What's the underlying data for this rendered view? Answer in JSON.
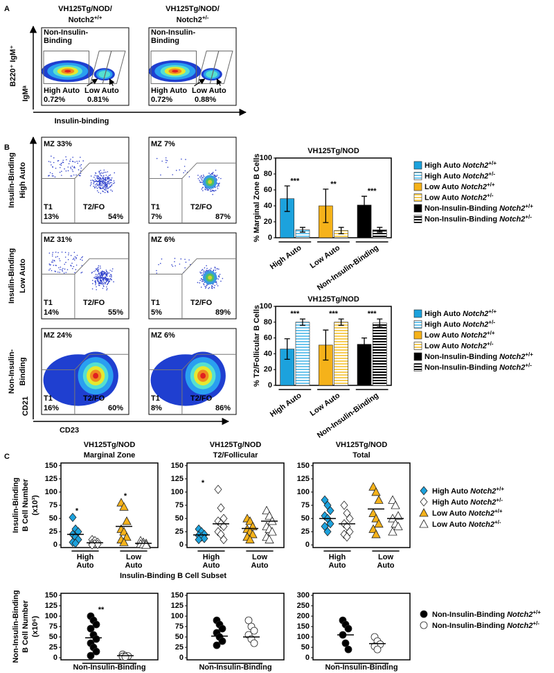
{
  "panel_labels": [
    "A",
    "B",
    "C"
  ],
  "panel_a": {
    "ylabel": "B220⁺ IgM⁺",
    "ylabel2": "IgMᵃ",
    "xlabel": "Insulin-binding",
    "plots": [
      {
        "title": "VH125Tg/NOD/",
        "gene": "Notch2",
        "genotype": "+/+",
        "gate": [
          "Non-Insulin-",
          "Binding"
        ],
        "high": "High Auto",
        "high_pct": "0.72%",
        "low": "Low Auto",
        "low_pct": "0.81%"
      },
      {
        "title": "VH125Tg/NOD/",
        "gene": "Notch2",
        "genotype": "+/-",
        "gate": [
          "Non-Insulin-",
          "Binding"
        ],
        "high": "High Auto",
        "high_pct": "0.72%",
        "low": "Low Auto",
        "low_pct": "0.88%"
      }
    ]
  },
  "panel_b_flow": {
    "row_labels": [
      [
        "Insulin-Binding",
        "High Auto"
      ],
      [
        "Insulin-Binding",
        "Low Auto"
      ],
      [
        "Non-Insulin-",
        "Binding"
      ]
    ],
    "ylabel": "CD21",
    "xlabel": "CD23",
    "plots": [
      [
        {
          "mz": "MZ 33%",
          "t1": "T1",
          "t1_pct": "13%",
          "t2": "T2/FO",
          "t2_pct": "54%"
        },
        {
          "mz": "MZ 7%",
          "t1": "T1",
          "t1_pct": "7%",
          "t2": "T2/FO",
          "t2_pct": "87%"
        }
      ],
      [
        {
          "mz": "MZ 31%",
          "t1": "T1",
          "t1_pct": "14%",
          "t2": "T2/FO",
          "t2_pct": "55%"
        },
        {
          "mz": "MZ 6%",
          "t1": "T1",
          "t1_pct": "5%",
          "t2": "T2/FO",
          "t2_pct": "89%"
        }
      ],
      [
        {
          "mz": "MZ 24%",
          "t1": "T1",
          "t1_pct": "16%",
          "t2": "T2/FO",
          "t2_pct": "60%"
        },
        {
          "mz": "MZ 6%",
          "t1": "T1",
          "t1_pct": "8%",
          "t2": "T2/FO",
          "t2_pct": "86%"
        }
      ]
    ]
  },
  "chart_data": [
    {
      "type": "bar",
      "title": "VH125Tg/NOD",
      "ylabel": "% Marginal Zone B Cells",
      "categories": [
        "High Auto",
        "Low Auto",
        "Non-Insulin-Binding"
      ],
      "significance": [
        "***",
        "**",
        "***"
      ],
      "ylim": [
        0,
        100
      ],
      "yticks": [
        0,
        20,
        40,
        60,
        80,
        100
      ],
      "series": [
        {
          "name": "High Auto",
          "gene": "Notch2",
          "genotype": "+/+",
          "color": "#1ca2dd",
          "hatch": false,
          "values": [
            49,
            null,
            null
          ],
          "errors": [
            16,
            null,
            null
          ]
        },
        {
          "name": "High Auto",
          "gene": "Notch2",
          "genotype": "+/-",
          "color": "#6cc4ec",
          "hatch": true,
          "values": [
            10,
            null,
            null
          ],
          "errors": [
            3,
            null,
            null
          ]
        },
        {
          "name": "Low Auto",
          "gene": "Notch2",
          "genotype": "+/+",
          "color": "#f5b21a",
          "hatch": false,
          "values": [
            null,
            40,
            null
          ],
          "errors": [
            null,
            21,
            null
          ]
        },
        {
          "name": "Low Auto",
          "gene": "Notch2",
          "genotype": "+/-",
          "color": "#f7cd55",
          "hatch": true,
          "values": [
            null,
            9,
            null
          ],
          "errors": [
            null,
            4,
            null
          ]
        },
        {
          "name": "Non-Insulin-Binding",
          "gene": "Notch2",
          "genotype": "+/+",
          "color": "#000000",
          "hatch": false,
          "values": [
            null,
            null,
            41
          ],
          "errors": [
            null,
            null,
            11
          ]
        },
        {
          "name": "Non-Insulin-Binding",
          "gene": "Notch2",
          "genotype": "+/-",
          "color": "#000000",
          "hatch": true,
          "values": [
            null,
            null,
            10
          ],
          "errors": [
            null,
            null,
            3
          ]
        }
      ]
    },
    {
      "type": "bar",
      "title": "VH125Tg/NOD",
      "ylabel": "% T2/Follicular B Cells",
      "categories": [
        "High Auto",
        "Low Auto",
        "Non-Insulin-Binding"
      ],
      "significance": [
        "***",
        "***",
        "***"
      ],
      "ylim": [
        0,
        100
      ],
      "yticks": [
        0,
        20,
        40,
        60,
        80,
        100
      ],
      "series": [
        {
          "name": "High Auto",
          "gene": "Notch2",
          "genotype": "+/+",
          "color": "#1ca2dd",
          "hatch": false,
          "values": [
            46,
            null,
            null
          ],
          "errors": [
            13,
            null,
            null
          ]
        },
        {
          "name": "High Auto",
          "gene": "Notch2",
          "genotype": "+/-",
          "color": "#6cc4ec",
          "hatch": true,
          "values": [
            80,
            null,
            null
          ],
          "errors": [
            4,
            null,
            null
          ]
        },
        {
          "name": "Low Auto",
          "gene": "Notch2",
          "genotype": "+/+",
          "color": "#f5b21a",
          "hatch": false,
          "values": [
            null,
            51,
            null
          ],
          "errors": [
            null,
            19,
            null
          ]
        },
        {
          "name": "Low Auto",
          "gene": "Notch2",
          "genotype": "+/-",
          "color": "#f7cd55",
          "hatch": true,
          "values": [
            null,
            80,
            null
          ],
          "errors": [
            null,
            4,
            null
          ]
        },
        {
          "name": "Non-Insulin-Binding",
          "gene": "Notch2",
          "genotype": "+/+",
          "color": "#000000",
          "hatch": false,
          "values": [
            null,
            null,
            52
          ],
          "errors": [
            null,
            null,
            8
          ]
        },
        {
          "name": "Non-Insulin-Binding",
          "gene": "Notch2",
          "genotype": "+/-",
          "color": "#000000",
          "hatch": true,
          "values": [
            null,
            null,
            79
          ],
          "errors": [
            null,
            null,
            5
          ]
        }
      ]
    },
    {
      "type": "scatter",
      "title": [
        "VH125Tg/NOD",
        "Marginal Zone"
      ],
      "ylabel": [
        "Insulin-Binding",
        "B Cell Number",
        "(x10³)"
      ],
      "categories": [
        [
          "High",
          "Auto"
        ],
        [
          "Low",
          "Auto"
        ]
      ],
      "significance": [
        "*",
        "*"
      ],
      "ylim": [
        -5,
        155
      ],
      "yticks": [
        0,
        25,
        50,
        75,
        100,
        125,
        150
      ],
      "series": [
        {
          "marker": "diamond",
          "color": "#1ca2dd",
          "values": [
            52,
            30,
            25,
            20,
            15,
            10,
            5,
            3
          ],
          "mean": 20
        },
        {
          "marker": "diamond",
          "color": "#ffffff",
          "values": [
            10,
            8,
            5,
            3,
            2,
            1,
            0
          ],
          "mean": 4
        },
        {
          "marker": "triangle",
          "color": "#f5b21a",
          "values": [
            80,
            72,
            45,
            30,
            25,
            15,
            10,
            5
          ],
          "mean": 35
        },
        {
          "marker": "triangle",
          "color": "#ffffff",
          "values": [
            8,
            5,
            3,
            2,
            1,
            0
          ],
          "mean": 3
        }
      ]
    },
    {
      "type": "scatter",
      "title": [
        "VH125Tg/NOD",
        "T2/Follicular"
      ],
      "xlabel": "Insulin-Binding B Cell Subset",
      "categories": [
        [
          "High",
          "Auto"
        ],
        [
          "Low",
          "Auto"
        ]
      ],
      "significance": [
        "*",
        null
      ],
      "ylim": [
        -5,
        155
      ],
      "yticks": [
        0,
        25,
        50,
        75,
        100,
        125,
        150
      ],
      "series": [
        {
          "marker": "diamond",
          "color": "#1ca2dd",
          "values": [
            30,
            25,
            20,
            18,
            15,
            12,
            10
          ],
          "mean": 19
        },
        {
          "marker": "diamond",
          "color": "#ffffff",
          "values": [
            105,
            70,
            50,
            45,
            40,
            35,
            25,
            20,
            10
          ],
          "mean": 40
        },
        {
          "marker": "triangle",
          "color": "#f5b21a",
          "values": [
            50,
            45,
            35,
            30,
            25,
            20,
            15,
            10
          ],
          "mean": 31
        },
        {
          "marker": "triangle",
          "color": "#ffffff",
          "values": [
            65,
            55,
            45,
            35,
            30,
            25,
            15,
            10
          ],
          "mean": 45
        }
      ]
    },
    {
      "type": "scatter",
      "title": [
        "VH125Tg/NOD",
        "Total"
      ],
      "categories": [
        [
          "High",
          "Auto"
        ],
        [
          "Low",
          "Auto"
        ]
      ],
      "ylim": [
        -5,
        155
      ],
      "yticks": [
        0,
        25,
        50,
        75,
        100,
        125,
        150
      ],
      "series": [
        {
          "marker": "diamond",
          "color": "#1ca2dd",
          "values": [
            85,
            75,
            65,
            55,
            50,
            40,
            35,
            25
          ],
          "mean": 50
        },
        {
          "marker": "diamond",
          "color": "#ffffff",
          "values": [
            75,
            60,
            50,
            40,
            35,
            25,
            20,
            15
          ],
          "mean": 40
        },
        {
          "marker": "triangle",
          "color": "#f5b21a",
          "values": [
            110,
            100,
            85,
            60,
            50,
            40,
            30,
            20
          ],
          "mean": 68
        },
        {
          "marker": "triangle",
          "color": "#ffffff",
          "values": [
            85,
            75,
            55,
            50,
            40,
            35,
            25
          ],
          "mean": 50
        }
      ]
    },
    {
      "type": "scatter",
      "ylabel": [
        "Non-Insulin-Binding",
        "B Cell Number",
        "(x10⁶)"
      ],
      "categories": [
        [
          "Non-Insulin-Binding"
        ]
      ],
      "significance": [
        "**"
      ],
      "ylim": [
        -5,
        155
      ],
      "yticks": [
        0,
        25,
        50,
        75,
        100,
        125,
        150
      ],
      "series": [
        {
          "marker": "circle",
          "color": "#000000",
          "values": [
            100,
            90,
            80,
            70,
            55,
            45,
            35,
            25,
            15,
            5
          ],
          "mean": 48
        },
        {
          "marker": "circle",
          "color": "#ffffff",
          "values": [
            8,
            5,
            4,
            3,
            2
          ],
          "mean": 5
        }
      ]
    },
    {
      "type": "scatter",
      "categories": [
        [
          "Non-Insulin-Binding"
        ]
      ],
      "ylim": [
        -5,
        155
      ],
      "yticks": [
        0,
        25,
        50,
        75,
        100,
        125,
        150
      ],
      "series": [
        {
          "marker": "circle",
          "color": "#000000",
          "values": [
            90,
            80,
            70,
            60,
            50,
            40,
            30
          ],
          "mean": 52
        },
        {
          "marker": "circle",
          "color": "#ffffff",
          "values": [
            90,
            75,
            65,
            55,
            45,
            35
          ],
          "mean": 50
        }
      ]
    },
    {
      "type": "scatter",
      "categories": [
        [
          "Non-Insulin-Binding"
        ]
      ],
      "ylim": [
        -10,
        310
      ],
      "yticks": [
        0,
        50,
        100,
        150,
        200,
        250,
        300
      ],
      "series": [
        {
          "marker": "circle",
          "color": "#000000",
          "values": [
            180,
            160,
            140,
            110,
            70,
            40
          ],
          "mean": 110
        },
        {
          "marker": "circle",
          "color": "#ffffff",
          "values": [
            100,
            80,
            65,
            55,
            40
          ],
          "mean": 68
        }
      ]
    }
  ],
  "legend_c": {
    "top": [
      {
        "name": "High Auto",
        "gene": "Notch2",
        "genotype": "+/+",
        "marker": "diamond",
        "color": "#1ca2dd"
      },
      {
        "name": "High Auto",
        "gene": "Notch2",
        "genotype": "+/-",
        "marker": "diamond",
        "color": "#ffffff"
      },
      {
        "name": "Low Auto",
        "gene": "Notch2",
        "genotype": "+/+",
        "marker": "triangle",
        "color": "#f5b21a"
      },
      {
        "name": "Low Auto",
        "gene": "Notch2",
        "genotype": "+/-",
        "marker": "triangle",
        "color": "#ffffff"
      }
    ],
    "bottom": [
      {
        "name": "Non-Insulin-Binding",
        "gene": "Notch2",
        "genotype": "+/+",
        "marker": "circle",
        "color": "#000000"
      },
      {
        "name": "Non-Insulin-Binding",
        "gene": "Notch2",
        "genotype": "+/-",
        "marker": "circle",
        "color": "#ffffff"
      }
    ]
  }
}
